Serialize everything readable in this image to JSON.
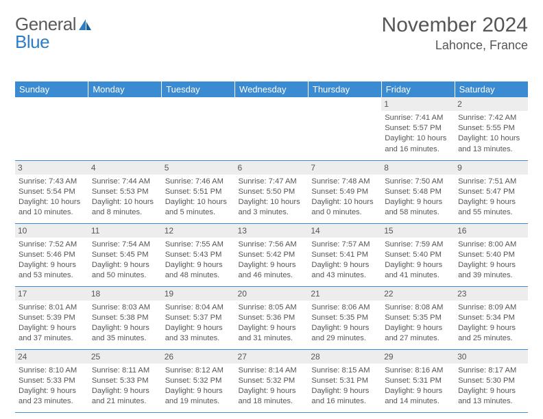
{
  "logo": {
    "part1": "General",
    "part2": "Blue"
  },
  "title": "November 2024",
  "location": "Lahonce, France",
  "colors": {
    "header_bg": "#3a8bd2",
    "header_text": "#ffffff",
    "daynum_bg": "#ededed",
    "text": "#555555",
    "row_border": "#3a8bd2",
    "logo_gray": "#5a5a5a",
    "logo_blue": "#2d7dc5"
  },
  "day_headers": [
    "Sunday",
    "Monday",
    "Tuesday",
    "Wednesday",
    "Thursday",
    "Friday",
    "Saturday"
  ],
  "weeks": [
    [
      {
        "n": "",
        "r": "",
        "s": "",
        "d": ""
      },
      {
        "n": "",
        "r": "",
        "s": "",
        "d": ""
      },
      {
        "n": "",
        "r": "",
        "s": "",
        "d": ""
      },
      {
        "n": "",
        "r": "",
        "s": "",
        "d": ""
      },
      {
        "n": "",
        "r": "",
        "s": "",
        "d": ""
      },
      {
        "n": "1",
        "r": "Sunrise: 7:41 AM",
        "s": "Sunset: 5:57 PM",
        "d": "Daylight: 10 hours and 16 minutes."
      },
      {
        "n": "2",
        "r": "Sunrise: 7:42 AM",
        "s": "Sunset: 5:55 PM",
        "d": "Daylight: 10 hours and 13 minutes."
      }
    ],
    [
      {
        "n": "3",
        "r": "Sunrise: 7:43 AM",
        "s": "Sunset: 5:54 PM",
        "d": "Daylight: 10 hours and 10 minutes."
      },
      {
        "n": "4",
        "r": "Sunrise: 7:44 AM",
        "s": "Sunset: 5:53 PM",
        "d": "Daylight: 10 hours and 8 minutes."
      },
      {
        "n": "5",
        "r": "Sunrise: 7:46 AM",
        "s": "Sunset: 5:51 PM",
        "d": "Daylight: 10 hours and 5 minutes."
      },
      {
        "n": "6",
        "r": "Sunrise: 7:47 AM",
        "s": "Sunset: 5:50 PM",
        "d": "Daylight: 10 hours and 3 minutes."
      },
      {
        "n": "7",
        "r": "Sunrise: 7:48 AM",
        "s": "Sunset: 5:49 PM",
        "d": "Daylight: 10 hours and 0 minutes."
      },
      {
        "n": "8",
        "r": "Sunrise: 7:50 AM",
        "s": "Sunset: 5:48 PM",
        "d": "Daylight: 9 hours and 58 minutes."
      },
      {
        "n": "9",
        "r": "Sunrise: 7:51 AM",
        "s": "Sunset: 5:47 PM",
        "d": "Daylight: 9 hours and 55 minutes."
      }
    ],
    [
      {
        "n": "10",
        "r": "Sunrise: 7:52 AM",
        "s": "Sunset: 5:46 PM",
        "d": "Daylight: 9 hours and 53 minutes."
      },
      {
        "n": "11",
        "r": "Sunrise: 7:54 AM",
        "s": "Sunset: 5:45 PM",
        "d": "Daylight: 9 hours and 50 minutes."
      },
      {
        "n": "12",
        "r": "Sunrise: 7:55 AM",
        "s": "Sunset: 5:43 PM",
        "d": "Daylight: 9 hours and 48 minutes."
      },
      {
        "n": "13",
        "r": "Sunrise: 7:56 AM",
        "s": "Sunset: 5:42 PM",
        "d": "Daylight: 9 hours and 46 minutes."
      },
      {
        "n": "14",
        "r": "Sunrise: 7:57 AM",
        "s": "Sunset: 5:41 PM",
        "d": "Daylight: 9 hours and 43 minutes."
      },
      {
        "n": "15",
        "r": "Sunrise: 7:59 AM",
        "s": "Sunset: 5:40 PM",
        "d": "Daylight: 9 hours and 41 minutes."
      },
      {
        "n": "16",
        "r": "Sunrise: 8:00 AM",
        "s": "Sunset: 5:40 PM",
        "d": "Daylight: 9 hours and 39 minutes."
      }
    ],
    [
      {
        "n": "17",
        "r": "Sunrise: 8:01 AM",
        "s": "Sunset: 5:39 PM",
        "d": "Daylight: 9 hours and 37 minutes."
      },
      {
        "n": "18",
        "r": "Sunrise: 8:03 AM",
        "s": "Sunset: 5:38 PM",
        "d": "Daylight: 9 hours and 35 minutes."
      },
      {
        "n": "19",
        "r": "Sunrise: 8:04 AM",
        "s": "Sunset: 5:37 PM",
        "d": "Daylight: 9 hours and 33 minutes."
      },
      {
        "n": "20",
        "r": "Sunrise: 8:05 AM",
        "s": "Sunset: 5:36 PM",
        "d": "Daylight: 9 hours and 31 minutes."
      },
      {
        "n": "21",
        "r": "Sunrise: 8:06 AM",
        "s": "Sunset: 5:35 PM",
        "d": "Daylight: 9 hours and 29 minutes."
      },
      {
        "n": "22",
        "r": "Sunrise: 8:08 AM",
        "s": "Sunset: 5:35 PM",
        "d": "Daylight: 9 hours and 27 minutes."
      },
      {
        "n": "23",
        "r": "Sunrise: 8:09 AM",
        "s": "Sunset: 5:34 PM",
        "d": "Daylight: 9 hours and 25 minutes."
      }
    ],
    [
      {
        "n": "24",
        "r": "Sunrise: 8:10 AM",
        "s": "Sunset: 5:33 PM",
        "d": "Daylight: 9 hours and 23 minutes."
      },
      {
        "n": "25",
        "r": "Sunrise: 8:11 AM",
        "s": "Sunset: 5:33 PM",
        "d": "Daylight: 9 hours and 21 minutes."
      },
      {
        "n": "26",
        "r": "Sunrise: 8:12 AM",
        "s": "Sunset: 5:32 PM",
        "d": "Daylight: 9 hours and 19 minutes."
      },
      {
        "n": "27",
        "r": "Sunrise: 8:14 AM",
        "s": "Sunset: 5:32 PM",
        "d": "Daylight: 9 hours and 18 minutes."
      },
      {
        "n": "28",
        "r": "Sunrise: 8:15 AM",
        "s": "Sunset: 5:31 PM",
        "d": "Daylight: 9 hours and 16 minutes."
      },
      {
        "n": "29",
        "r": "Sunrise: 8:16 AM",
        "s": "Sunset: 5:31 PM",
        "d": "Daylight: 9 hours and 14 minutes."
      },
      {
        "n": "30",
        "r": "Sunrise: 8:17 AM",
        "s": "Sunset: 5:30 PM",
        "d": "Daylight: 9 hours and 13 minutes."
      }
    ]
  ]
}
